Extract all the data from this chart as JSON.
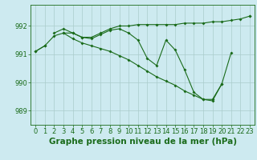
{
  "x": [
    0,
    1,
    2,
    3,
    4,
    5,
    6,
    7,
    8,
    9,
    10,
    11,
    12,
    13,
    14,
    15,
    16,
    17,
    18,
    19,
    20,
    21,
    22,
    23
  ],
  "series_main": [
    991.1,
    991.3,
    991.65,
    991.75,
    991.75,
    991.6,
    991.55,
    991.7,
    991.85,
    991.9,
    991.75,
    991.5,
    990.85,
    990.6,
    991.5,
    991.15,
    990.45,
    989.65,
    989.4,
    989.35,
    989.95,
    991.05,
    null,
    null
  ],
  "series_upper": [
    null,
    null,
    991.75,
    991.9,
    991.75,
    991.6,
    991.6,
    991.75,
    991.9,
    992.0,
    992.0,
    992.05,
    992.05,
    992.05,
    992.05,
    992.05,
    992.1,
    992.1,
    992.1,
    992.15,
    992.15,
    992.2,
    992.25,
    992.35
  ],
  "series_lower": [
    991.1,
    991.3,
    null,
    991.75,
    991.55,
    991.4,
    991.3,
    991.2,
    991.1,
    990.95,
    990.8,
    990.6,
    990.4,
    990.2,
    990.05,
    989.9,
    989.7,
    989.55,
    989.4,
    989.4,
    989.95,
    null,
    null,
    992.35
  ],
  "line_color": "#1a6b1a",
  "bg_color": "#cdeaf0",
  "grid_color": "#aacccc",
  "title": "Graphe pression niveau de la mer (hPa)",
  "ylim": [
    988.5,
    992.75
  ],
  "yticks": [
    989,
    990,
    991,
    992
  ],
  "xlim": [
    -0.5,
    23.5
  ],
  "xticks": [
    0,
    1,
    2,
    3,
    4,
    5,
    6,
    7,
    8,
    9,
    10,
    11,
    12,
    13,
    14,
    15,
    16,
    17,
    18,
    19,
    20,
    21,
    22,
    23
  ],
  "title_fontsize": 7.5,
  "tick_fontsize": 6.0,
  "figwidth": 3.2,
  "figheight": 2.0,
  "dpi": 100
}
